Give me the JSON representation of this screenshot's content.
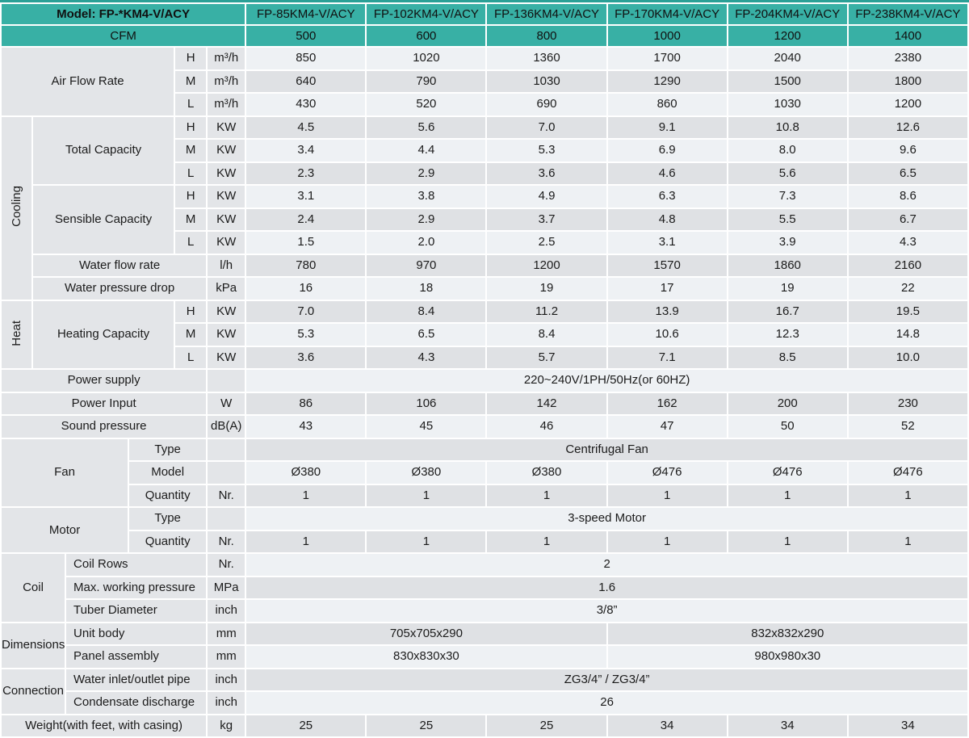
{
  "colors": {
    "teal_header": "#38b0a5",
    "top_bar": "#2aa096",
    "row_light": "#eef1f4",
    "row_dark": "#dfe1e4",
    "label_bg": "#e3e5e8",
    "grid": "#ffffff",
    "text": "#1b1b1b"
  },
  "header": {
    "model_label": "Model: FP-*KM4-V/ACY",
    "cfm_label": "CFM",
    "model_columns": [
      "FP-85KM4-V/ACY",
      "FP-102KM4-V/ACY",
      "FP-136KM4-V/ACY",
      "FP-170KM4-V/ACY",
      "FP-204KM4-V/ACY",
      "FP-238KM4-V/ACY"
    ],
    "cfm_values": [
      "500",
      "600",
      "800",
      "1000",
      "1200",
      "1400"
    ]
  },
  "table": {
    "rows": [
      {
        "shade": "light",
        "lead": [
          {
            "text": "Air Flow Rate",
            "cs": 4,
            "rs": 3,
            "kind": "group"
          },
          {
            "text": "H",
            "cs": 1,
            "rs": 1,
            "kind": "group"
          },
          {
            "text": "m³/h",
            "cs": 1,
            "rs": 1,
            "kind": "group"
          }
        ],
        "values": [
          "850",
          "1020",
          "1360",
          "1700",
          "2040",
          "2380"
        ]
      },
      {
        "shade": "dark",
        "lead": [
          {
            "text": "M",
            "cs": 1,
            "rs": 1,
            "kind": "group"
          },
          {
            "text": "m³/h",
            "cs": 1,
            "rs": 1,
            "kind": "group"
          }
        ],
        "values": [
          "640",
          "790",
          "1030",
          "1290",
          "1500",
          "1800"
        ]
      },
      {
        "shade": "light",
        "lead": [
          {
            "text": "L",
            "cs": 1,
            "rs": 1,
            "kind": "group"
          },
          {
            "text": "m³/h",
            "cs": 1,
            "rs": 1,
            "kind": "group"
          }
        ],
        "values": [
          "430",
          "520",
          "690",
          "860",
          "1030",
          "1200"
        ]
      },
      {
        "shade": "dark",
        "lead": [
          {
            "text": "Cooling",
            "cs": 1,
            "rs": 8,
            "kind": "side"
          },
          {
            "text": "Total Capacity",
            "cs": 3,
            "rs": 3,
            "kind": "group"
          },
          {
            "text": "H",
            "cs": 1,
            "rs": 1,
            "kind": "group"
          },
          {
            "text": "KW",
            "cs": 1,
            "rs": 1,
            "kind": "group"
          }
        ],
        "values": [
          "4.5",
          "5.6",
          "7.0",
          "9.1",
          "10.8",
          "12.6"
        ]
      },
      {
        "shade": "light",
        "lead": [
          {
            "text": "M",
            "cs": 1,
            "rs": 1,
            "kind": "group"
          },
          {
            "text": "KW",
            "cs": 1,
            "rs": 1,
            "kind": "group"
          }
        ],
        "values": [
          "3.4",
          "4.4",
          "5.3",
          "6.9",
          "8.0",
          "9.6"
        ]
      },
      {
        "shade": "dark",
        "lead": [
          {
            "text": "L",
            "cs": 1,
            "rs": 1,
            "kind": "group"
          },
          {
            "text": "KW",
            "cs": 1,
            "rs": 1,
            "kind": "group"
          }
        ],
        "values": [
          "2.3",
          "2.9",
          "3.6",
          "4.6",
          "5.6",
          "6.5"
        ]
      },
      {
        "shade": "light",
        "lead": [
          {
            "text": "Sensible Capacity",
            "cs": 3,
            "rs": 3,
            "kind": "group"
          },
          {
            "text": "H",
            "cs": 1,
            "rs": 1,
            "kind": "group"
          },
          {
            "text": "KW",
            "cs": 1,
            "rs": 1,
            "kind": "group"
          }
        ],
        "values": [
          "3.1",
          "3.8",
          "4.9",
          "6.3",
          "7.3",
          "8.6"
        ]
      },
      {
        "shade": "dark",
        "lead": [
          {
            "text": "M",
            "cs": 1,
            "rs": 1,
            "kind": "group"
          },
          {
            "text": "KW",
            "cs": 1,
            "rs": 1,
            "kind": "group"
          }
        ],
        "values": [
          "2.4",
          "2.9",
          "3.7",
          "4.8",
          "5.5",
          "6.7"
        ]
      },
      {
        "shade": "light",
        "lead": [
          {
            "text": "L",
            "cs": 1,
            "rs": 1,
            "kind": "group"
          },
          {
            "text": "KW",
            "cs": 1,
            "rs": 1,
            "kind": "group"
          }
        ],
        "values": [
          "1.5",
          "2.0",
          "2.5",
          "3.1",
          "3.9",
          "4.3"
        ]
      },
      {
        "shade": "dark",
        "lead": [
          {
            "text": "Water flow rate",
            "cs": 4,
            "rs": 1,
            "kind": "group"
          },
          {
            "text": "l/h",
            "cs": 1,
            "rs": 1,
            "kind": "group"
          }
        ],
        "values": [
          "780",
          "970",
          "1200",
          "1570",
          "1860",
          "2160"
        ]
      },
      {
        "shade": "light",
        "lead": [
          {
            "text": "Water pressure drop",
            "cs": 4,
            "rs": 1,
            "kind": "group"
          },
          {
            "text": "kPa",
            "cs": 1,
            "rs": 1,
            "kind": "group"
          }
        ],
        "values": [
          "16",
          "18",
          "19",
          "17",
          "19",
          "22"
        ]
      },
      {
        "shade": "dark",
        "lead": [
          {
            "text": "Heat",
            "cs": 1,
            "rs": 3,
            "kind": "side"
          },
          {
            "text": "Heating Capacity",
            "cs": 3,
            "rs": 3,
            "kind": "group"
          },
          {
            "text": "H",
            "cs": 1,
            "rs": 1,
            "kind": "group"
          },
          {
            "text": "KW",
            "cs": 1,
            "rs": 1,
            "kind": "group"
          }
        ],
        "values": [
          "7.0",
          "8.4",
          "11.2",
          "13.9",
          "16.7",
          "19.5"
        ]
      },
      {
        "shade": "light",
        "lead": [
          {
            "text": "M",
            "cs": 1,
            "rs": 1,
            "kind": "group"
          },
          {
            "text": "KW",
            "cs": 1,
            "rs": 1,
            "kind": "group"
          }
        ],
        "values": [
          "5.3",
          "6.5",
          "8.4",
          "10.6",
          "12.3",
          "14.8"
        ]
      },
      {
        "shade": "dark",
        "lead": [
          {
            "text": "L",
            "cs": 1,
            "rs": 1,
            "kind": "group"
          },
          {
            "text": "KW",
            "cs": 1,
            "rs": 1,
            "kind": "group"
          }
        ],
        "values": [
          "3.6",
          "4.3",
          "5.7",
          "7.1",
          "8.5",
          "10.0"
        ]
      },
      {
        "shade": "light",
        "lead": [
          {
            "text": "Power supply",
            "cs": 5,
            "rs": 1,
            "kind": "group"
          },
          {
            "text": "",
            "cs": 1,
            "rs": 1,
            "kind": "group"
          }
        ],
        "value_full": "220~240V/1PH/50Hz(or 60HZ)"
      },
      {
        "shade": "dark",
        "lead": [
          {
            "text": "Power Input",
            "cs": 5,
            "rs": 1,
            "kind": "group"
          },
          {
            "text": "W",
            "cs": 1,
            "rs": 1,
            "kind": "group"
          }
        ],
        "values": [
          "86",
          "106",
          "142",
          "162",
          "200",
          "230"
        ]
      },
      {
        "shade": "light",
        "lead": [
          {
            "text": "Sound pressure",
            "cs": 5,
            "rs": 1,
            "kind": "group"
          },
          {
            "text": "dB(A)",
            "cs": 1,
            "rs": 1,
            "kind": "group"
          }
        ],
        "values": [
          "43",
          "45",
          "46",
          "47",
          "50",
          "52"
        ]
      },
      {
        "shade": "dark",
        "lead": [
          {
            "text": "Fan",
            "cs": 3,
            "rs": 3,
            "kind": "group"
          },
          {
            "text": "Type",
            "cs": 2,
            "rs": 1,
            "kind": "group"
          },
          {
            "text": "",
            "cs": 1,
            "rs": 1,
            "kind": "group"
          }
        ],
        "value_full": "Centrifugal Fan"
      },
      {
        "shade": "light",
        "lead": [
          {
            "text": "Model",
            "cs": 2,
            "rs": 1,
            "kind": "group"
          },
          {
            "text": "",
            "cs": 1,
            "rs": 1,
            "kind": "group"
          }
        ],
        "values": [
          "Ø380",
          "Ø380",
          "Ø380",
          "Ø476",
          "Ø476",
          "Ø476"
        ]
      },
      {
        "shade": "dark",
        "lead": [
          {
            "text": "Quantity",
            "cs": 2,
            "rs": 1,
            "kind": "group"
          },
          {
            "text": "Nr.",
            "cs": 1,
            "rs": 1,
            "kind": "group"
          }
        ],
        "values": [
          "1",
          "1",
          "1",
          "1",
          "1",
          "1"
        ]
      },
      {
        "shade": "light",
        "lead": [
          {
            "text": "Motor",
            "cs": 3,
            "rs": 2,
            "kind": "group"
          },
          {
            "text": "Type",
            "cs": 2,
            "rs": 1,
            "kind": "group"
          },
          {
            "text": "",
            "cs": 1,
            "rs": 1,
            "kind": "group"
          }
        ],
        "value_full": "3-speed Motor"
      },
      {
        "shade": "dark",
        "lead": [
          {
            "text": "Quantity",
            "cs": 2,
            "rs": 1,
            "kind": "group"
          },
          {
            "text": "Nr.",
            "cs": 1,
            "rs": 1,
            "kind": "group"
          }
        ],
        "values": [
          "1",
          "1",
          "1",
          "1",
          "1",
          "1"
        ]
      },
      {
        "shade": "light",
        "lead": [
          {
            "text": "Coil",
            "cs": 2,
            "rs": 3,
            "kind": "group"
          },
          {
            "text": "Coil Rows",
            "cs": 3,
            "rs": 1,
            "kind": "sub"
          },
          {
            "text": "Nr.",
            "cs": 1,
            "rs": 1,
            "kind": "group"
          }
        ],
        "value_full": "2"
      },
      {
        "shade": "dark",
        "lead": [
          {
            "text": "Max. working pressure",
            "cs": 3,
            "rs": 1,
            "kind": "sub"
          },
          {
            "text": "MPa",
            "cs": 1,
            "rs": 1,
            "kind": "group"
          }
        ],
        "value_full": "1.6"
      },
      {
        "shade": "light",
        "lead": [
          {
            "text": "Tuber Diameter",
            "cs": 3,
            "rs": 1,
            "kind": "sub"
          },
          {
            "text": "inch",
            "cs": 1,
            "rs": 1,
            "kind": "group"
          }
        ],
        "value_full": "3/8”"
      },
      {
        "shade": "dark",
        "lead": [
          {
            "text": "Dimensions",
            "cs": 2,
            "rs": 2,
            "kind": "group"
          },
          {
            "text": "Unit body",
            "cs": 3,
            "rs": 1,
            "kind": "sub"
          },
          {
            "text": "mm",
            "cs": 1,
            "rs": 1,
            "kind": "group"
          }
        ],
        "value_halves": [
          "705x705x290",
          "832x832x290"
        ]
      },
      {
        "shade": "light",
        "lead": [
          {
            "text": "Panel assembly",
            "cs": 3,
            "rs": 1,
            "kind": "sub"
          },
          {
            "text": "mm",
            "cs": 1,
            "rs": 1,
            "kind": "group"
          }
        ],
        "value_halves": [
          "830x830x30",
          "980x980x30"
        ]
      },
      {
        "shade": "dark",
        "lead": [
          {
            "text": "Connection",
            "cs": 2,
            "rs": 2,
            "kind": "group"
          },
          {
            "text": "Water inlet/outlet pipe",
            "cs": 3,
            "rs": 1,
            "kind": "sub"
          },
          {
            "text": "inch",
            "cs": 1,
            "rs": 1,
            "kind": "group"
          }
        ],
        "value_full": "ZG3/4” / ZG3/4”"
      },
      {
        "shade": "light",
        "lead": [
          {
            "text": "Condensate discharge",
            "cs": 3,
            "rs": 1,
            "kind": "sub"
          },
          {
            "text": "inch",
            "cs": 1,
            "rs": 1,
            "kind": "group"
          }
        ],
        "value_full": "26"
      },
      {
        "shade": "dark",
        "lead": [
          {
            "text": "Weight(with feet, with casing)",
            "cs": 5,
            "rs": 1,
            "kind": "group"
          },
          {
            "text": "kg",
            "cs": 1,
            "rs": 1,
            "kind": "group"
          }
        ],
        "values": [
          "25",
          "25",
          "25",
          "34",
          "34",
          "34"
        ]
      }
    ]
  }
}
